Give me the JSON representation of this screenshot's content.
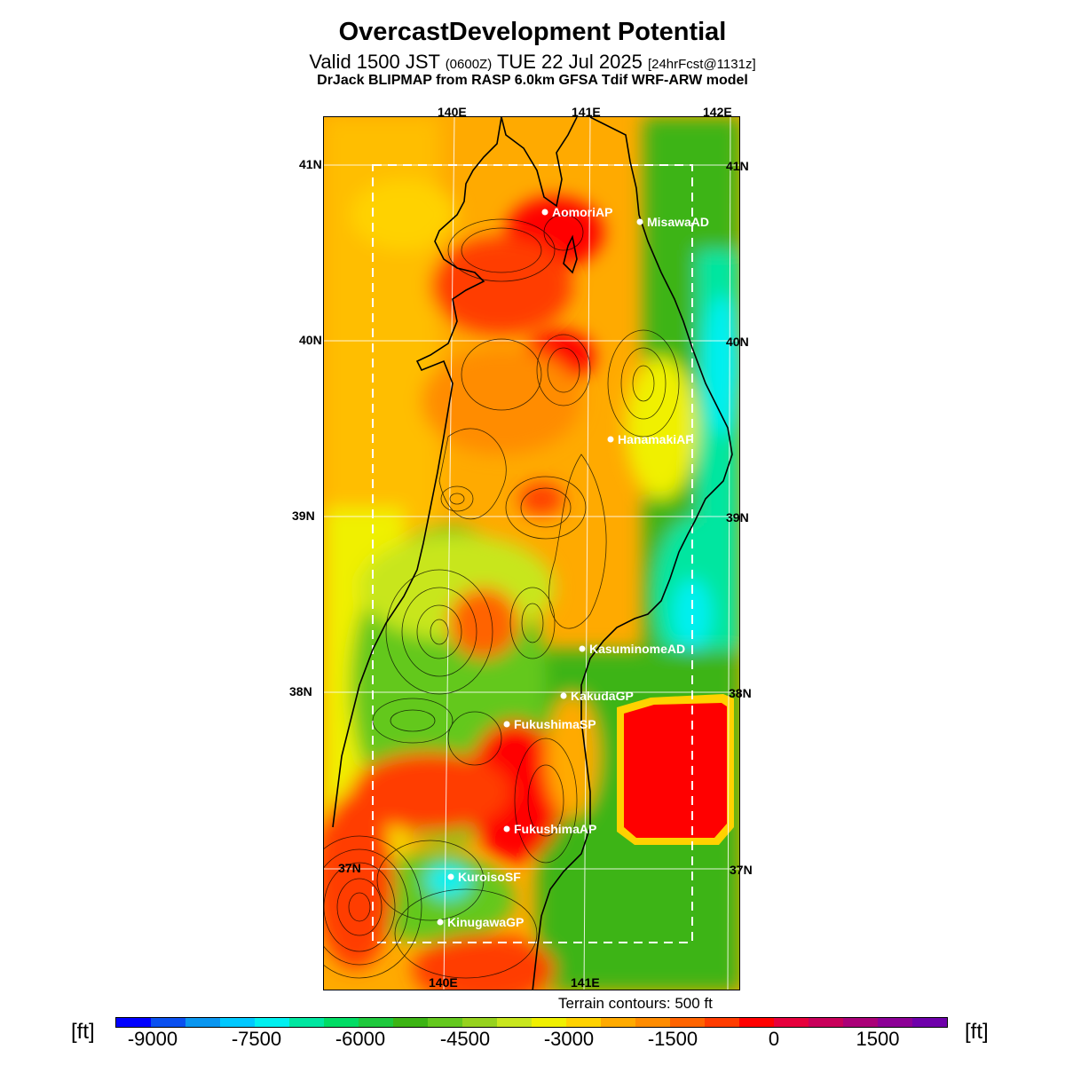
{
  "header": {
    "title": "OvercastDevelopment Potential",
    "valid_prefix": "Valid 1500 JST",
    "valid_zulu": "(0600Z)",
    "valid_date": "TUE 22 Jul 2025",
    "forecast": "[24hrFcst@1131z]",
    "model": "DrJack BLIPMAP from RASP 6.0km GFSA Tdif WRF-ARW model"
  },
  "map": {
    "top_lon_labels": [
      "140E",
      "141E",
      "142E"
    ],
    "bottom_lon_labels": [
      "140E",
      "141E"
    ],
    "left_lat_labels": [
      "41N",
      "40N",
      "39N",
      "38N",
      "37N"
    ],
    "right_lat_labels": [
      "41N",
      "40N",
      "39N",
      "38N",
      "37N"
    ],
    "terrain_note": "Terrain contours: 500 ft",
    "locations": [
      {
        "name": "AomoriAP"
      },
      {
        "name": "MisawaAD"
      },
      {
        "name": "HanamakiAP"
      },
      {
        "name": "KasuminomeAD"
      },
      {
        "name": "KakudaGP"
      },
      {
        "name": "FukushimaSP"
      },
      {
        "name": "FukushimaAP"
      },
      {
        "name": "KuroisoSF"
      },
      {
        "name": "KinugawaGP"
      }
    ]
  },
  "colorbar": {
    "unit_left": "[ft]",
    "unit_right": "[ft]",
    "tick_labels": [
      "-9000",
      "-7500",
      "-6000",
      "-4500",
      "-3000",
      "-1500",
      "0",
      "1500"
    ],
    "colors": [
      "#0000ff",
      "#0a50f0",
      "#0a96f0",
      "#00c8ff",
      "#00f0f0",
      "#00e6a0",
      "#00dc64",
      "#1ec83c",
      "#3cb414",
      "#64c81e",
      "#96d21e",
      "#c8e61e",
      "#f0f000",
      "#ffd200",
      "#ffaa00",
      "#ff8c00",
      "#ff6400",
      "#ff3c00",
      "#ff0000",
      "#e6003c",
      "#c8005a",
      "#aa0078",
      "#8c0096",
      "#6e00aa"
    ]
  }
}
